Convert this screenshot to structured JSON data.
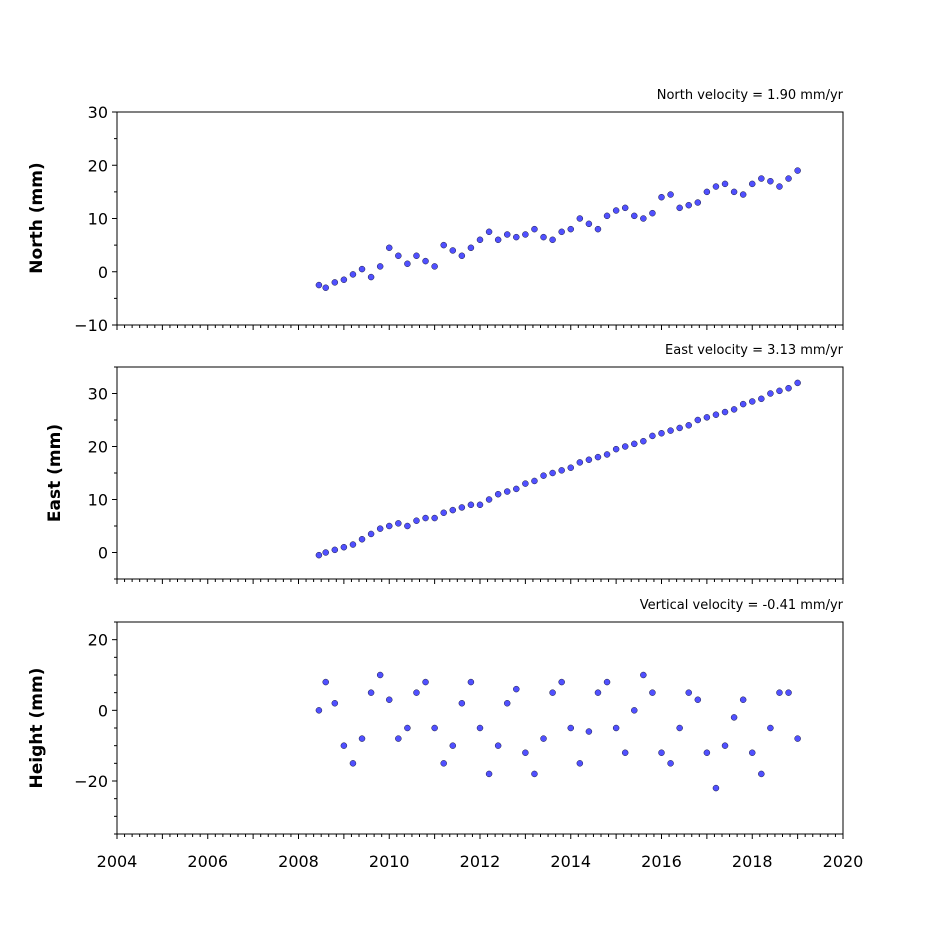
{
  "chart_data": [
    {
      "type": "scatter",
      "title": "North velocity = 1.90 mm/yr",
      "xlabel": "",
      "ylabel": "North (mm)",
      "xlim": [
        2004,
        2020
      ],
      "ylim": [
        -10,
        30
      ],
      "yticks": [
        -10,
        0,
        10,
        20,
        30
      ],
      "ytick_labels": [
        "−10",
        "0",
        "10",
        "20",
        "30"
      ],
      "series": [
        {
          "x": [
            2008.45,
            2008.6,
            2008.8,
            2009.0,
            2009.2,
            2009.4,
            2009.6,
            2009.8,
            2010.0,
            2010.2,
            2010.4,
            2010.6,
            2010.8,
            2011.0,
            2011.2,
            2011.4,
            2011.6,
            2011.8,
            2012.0,
            2012.2,
            2012.4,
            2012.6,
            2012.8,
            2013.0,
            2013.2,
            2013.4,
            2013.6,
            2013.8,
            2014.0,
            2014.2,
            2014.4,
            2014.6,
            2014.8,
            2015.0,
            2015.2,
            2015.4,
            2015.6,
            2015.8,
            2016.0,
            2016.2,
            2016.4,
            2016.6,
            2016.8,
            2017.0,
            2017.2,
            2017.4,
            2017.6,
            2017.8,
            2018.0,
            2018.2,
            2018.4,
            2018.6,
            2018.8,
            2019.0
          ],
          "y": [
            -2.5,
            -3.0,
            -2.0,
            -1.5,
            -0.5,
            0.5,
            -1.0,
            1.0,
            4.5,
            3.0,
            1.5,
            3.0,
            2.0,
            1.0,
            5.0,
            4.0,
            3.0,
            4.5,
            6.0,
            7.5,
            6.0,
            7.0,
            6.5,
            7.0,
            8.0,
            6.5,
            6.0,
            7.5,
            8.0,
            10.0,
            9.0,
            8.0,
            10.5,
            11.5,
            12.0,
            10.5,
            10.0,
            11.0,
            14.0,
            14.5,
            12.0,
            12.5,
            13.0,
            15.0,
            16.0,
            16.5,
            15.0,
            14.5,
            16.5,
            17.5,
            17.0,
            16.0,
            17.5,
            19.0
          ]
        }
      ]
    },
    {
      "type": "scatter",
      "title": "East velocity = 3.13 mm/yr",
      "xlabel": "",
      "ylabel": "East (mm)",
      "xlim": [
        2004,
        2020
      ],
      "ylim": [
        -5,
        35
      ],
      "yticks": [
        0,
        10,
        20,
        30
      ],
      "ytick_labels": [
        "0",
        "10",
        "20",
        "30"
      ],
      "series": [
        {
          "x": [
            2008.45,
            2008.6,
            2008.8,
            2009.0,
            2009.2,
            2009.4,
            2009.6,
            2009.8,
            2010.0,
            2010.2,
            2010.4,
            2010.6,
            2010.8,
            2011.0,
            2011.2,
            2011.4,
            2011.6,
            2011.8,
            2012.0,
            2012.2,
            2012.4,
            2012.6,
            2012.8,
            2013.0,
            2013.2,
            2013.4,
            2013.6,
            2013.8,
            2014.0,
            2014.2,
            2014.4,
            2014.6,
            2014.8,
            2015.0,
            2015.2,
            2015.4,
            2015.6,
            2015.8,
            2016.0,
            2016.2,
            2016.4,
            2016.6,
            2016.8,
            2017.0,
            2017.2,
            2017.4,
            2017.6,
            2017.8,
            2018.0,
            2018.2,
            2018.4,
            2018.6,
            2018.8,
            2019.0
          ],
          "y": [
            -0.5,
            0.0,
            0.5,
            1.0,
            1.5,
            2.5,
            3.5,
            4.5,
            5.0,
            5.5,
            5.0,
            6.0,
            6.5,
            6.5,
            7.5,
            8.0,
            8.5,
            9.0,
            9.0,
            10.0,
            11.0,
            11.5,
            12.0,
            13.0,
            13.5,
            14.5,
            15.0,
            15.5,
            16.0,
            17.0,
            17.5,
            18.0,
            18.5,
            19.5,
            20.0,
            20.5,
            21.0,
            22.0,
            22.5,
            23.0,
            23.5,
            24.0,
            25.0,
            25.5,
            26.0,
            26.5,
            27.0,
            28.0,
            28.5,
            29.0,
            30.0,
            30.5,
            31.0,
            32.0
          ]
        }
      ]
    },
    {
      "type": "scatter",
      "title": "Vertical velocity = -0.41 mm/yr",
      "xlabel": "",
      "ylabel": "Height (mm)",
      "xlim": [
        2004,
        2020
      ],
      "ylim": [
        -35,
        25
      ],
      "yticks": [
        -20,
        0,
        20
      ],
      "ytick_labels": [
        "−20",
        "0",
        "20"
      ],
      "xticks": [
        2004,
        2006,
        2008,
        2010,
        2012,
        2014,
        2016,
        2018,
        2020
      ],
      "xtick_labels": [
        "2004",
        "2006",
        "2008",
        "2010",
        "2012",
        "2014",
        "2016",
        "2018",
        "2020"
      ],
      "series": [
        {
          "x": [
            2008.45,
            2008.6,
            2008.8,
            2009.0,
            2009.2,
            2009.4,
            2009.6,
            2009.8,
            2010.0,
            2010.2,
            2010.4,
            2010.6,
            2010.8,
            2011.0,
            2011.2,
            2011.4,
            2011.6,
            2011.8,
            2012.0,
            2012.2,
            2012.4,
            2012.6,
            2012.8,
            2013.0,
            2013.2,
            2013.4,
            2013.6,
            2013.8,
            2014.0,
            2014.2,
            2014.4,
            2014.6,
            2014.8,
            2015.0,
            2015.2,
            2015.4,
            2015.6,
            2015.8,
            2016.0,
            2016.2,
            2016.4,
            2016.6,
            2016.8,
            2017.0,
            2017.2,
            2017.4,
            2017.6,
            2017.8,
            2018.0,
            2018.2,
            2018.4,
            2018.6,
            2018.8,
            2019.0
          ],
          "y": [
            0.0,
            8.0,
            2.0,
            -10.0,
            -15.0,
            -8.0,
            5.0,
            10.0,
            3.0,
            -8.0,
            -5.0,
            5.0,
            8.0,
            -5.0,
            -15.0,
            -10.0,
            2.0,
            8.0,
            -5.0,
            -18.0,
            -10.0,
            2.0,
            6.0,
            -12.0,
            -18.0,
            -8.0,
            5.0,
            8.0,
            -5.0,
            -15.0,
            -6.0,
            5.0,
            8.0,
            -5.0,
            -12.0,
            0.0,
            10.0,
            5.0,
            -12.0,
            -15.0,
            -5.0,
            5.0,
            3.0,
            -12.0,
            -22.0,
            -10.0,
            -2.0,
            3.0,
            -12.0,
            -18.0,
            -5.0,
            5.0,
            5.0,
            -8.0
          ]
        }
      ]
    }
  ]
}
